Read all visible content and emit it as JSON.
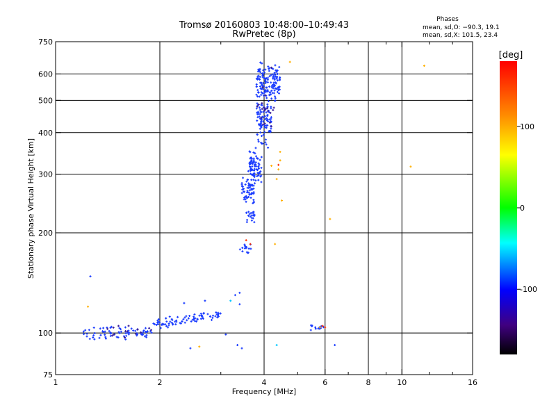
{
  "chart_data": {
    "type": "scatter",
    "title_line1": "Tromsø 20160803 10:48:00–10:49:43",
    "title_line2": "RwPretec (8p)",
    "xlabel": "Frequency [MHz]",
    "ylabel": "Stationary phase Virtual Height [km]",
    "x_scale": "log",
    "y_scale": "log",
    "xlim": [
      1,
      16
    ],
    "ylim": [
      75,
      750
    ],
    "x_ticks": [
      1,
      2,
      4,
      6,
      8,
      10,
      16
    ],
    "x_gridlines": [
      2,
      4,
      6,
      8,
      10
    ],
    "y_ticks": [
      75,
      100,
      200,
      300,
      400,
      500,
      600,
      750
    ],
    "y_gridlines": [
      100,
      200,
      300,
      400,
      500,
      600
    ],
    "grid": true,
    "legend": {
      "title": "Phases",
      "line1": "mean, sd,O: −90.3, 19.1",
      "line2": "mean, sd,X: 101.5, 23.4",
      "placement": "top-right"
    },
    "colorbar": {
      "label": "[deg]",
      "range": [
        -180,
        180
      ],
      "ticks": [
        100,
        0,
        -100
      ],
      "colors": [
        "#ff0000",
        "#ff8800",
        "#ffff00",
        "#00ff00",
        "#00ffff",
        "#0000ff",
        "#400080",
        "#000000"
      ]
    },
    "point_colors": {
      "o_mode": "#1a3cff",
      "dark": "#3a1e99",
      "x_mode": "#ffb000",
      "red": "#ff3300",
      "cyan": "#00c8ff"
    },
    "clusters": [
      {
        "mode": "o_mode",
        "x_range": [
          1.2,
          1.9
        ],
        "y_center": 100,
        "y_spread": 4,
        "n": 70
      },
      {
        "mode": "o_mode",
        "x_range": [
          1.9,
          3.0
        ],
        "y_center": 106,
        "y_spread": 3,
        "n": 80,
        "y_slope": 8
      },
      {
        "mode": "o_mode",
        "x_range": [
          3.45,
          3.75
        ],
        "y_center": 265,
        "y_spread": 20,
        "n": 60
      },
      {
        "mode": "o_mode",
        "x_range": [
          3.6,
          3.95
        ],
        "y_center": 320,
        "y_spread": 30,
        "n": 80
      },
      {
        "mode": "o_mode",
        "x_range": [
          3.8,
          4.2
        ],
        "y_center": 430,
        "y_spread": 60,
        "n": 90
      },
      {
        "mode": "o_mode",
        "x_range": [
          3.8,
          4.45
        ],
        "y_center": 560,
        "y_spread": 60,
        "n": 150
      },
      {
        "mode": "o_mode",
        "x_range": [
          3.55,
          3.75
        ],
        "y_center": 225,
        "y_spread": 10,
        "n": 20
      },
      {
        "mode": "o_mode",
        "x_range": [
          3.4,
          3.7
        ],
        "y_center": 180,
        "y_spread": 6,
        "n": 15
      },
      {
        "mode": "o_mode",
        "x_range": [
          5.4,
          6.0
        ],
        "y_center": 104,
        "y_spread": 1.5,
        "n": 14
      },
      {
        "mode": "dark",
        "x_range": [
          1.4,
          1.9
        ],
        "y_center": 102,
        "y_spread": 4,
        "n": 15
      },
      {
        "mode": "dark",
        "x_range": [
          3.8,
          4.3
        ],
        "y_center": 500,
        "y_spread": 80,
        "n": 20
      }
    ],
    "points": [
      {
        "x": 1.26,
        "y": 148,
        "mode": "o_mode"
      },
      {
        "x": 1.24,
        "y": 120,
        "mode": "x_mode"
      },
      {
        "x": 2.45,
        "y": 90,
        "mode": "o_mode"
      },
      {
        "x": 2.6,
        "y": 91,
        "mode": "x_mode"
      },
      {
        "x": 3.1,
        "y": 99,
        "mode": "o_mode"
      },
      {
        "x": 3.35,
        "y": 92,
        "mode": "o_mode"
      },
      {
        "x": 3.45,
        "y": 90,
        "mode": "o_mode"
      },
      {
        "x": 3.3,
        "y": 130,
        "mode": "o_mode"
      },
      {
        "x": 3.4,
        "y": 122,
        "mode": "o_mode"
      },
      {
        "x": 3.4,
        "y": 132,
        "mode": "o_mode"
      },
      {
        "x": 3.2,
        "y": 125,
        "mode": "cyan"
      },
      {
        "x": 2.35,
        "y": 123,
        "mode": "o_mode"
      },
      {
        "x": 2.7,
        "y": 125,
        "mode": "o_mode"
      },
      {
        "x": 4.35,
        "y": 92,
        "mode": "cyan"
      },
      {
        "x": 6.4,
        "y": 92,
        "mode": "o_mode"
      },
      {
        "x": 5.9,
        "y": 105,
        "mode": "red"
      },
      {
        "x": 6.0,
        "y": 104,
        "mode": "red"
      },
      {
        "x": 5.8,
        "y": 104,
        "mode": "x_mode"
      },
      {
        "x": 4.3,
        "y": 185,
        "mode": "x_mode"
      },
      {
        "x": 4.5,
        "y": 250,
        "mode": "x_mode"
      },
      {
        "x": 4.35,
        "y": 290,
        "mode": "x_mode"
      },
      {
        "x": 4.4,
        "y": 310,
        "mode": "x_mode"
      },
      {
        "x": 4.45,
        "y": 330,
        "mode": "x_mode"
      },
      {
        "x": 4.45,
        "y": 350,
        "mode": "x_mode"
      },
      {
        "x": 4.4,
        "y": 320,
        "mode": "red"
      },
      {
        "x": 4.2,
        "y": 318,
        "mode": "x_mode"
      },
      {
        "x": 4.75,
        "y": 652,
        "mode": "x_mode"
      },
      {
        "x": 6.2,
        "y": 220,
        "mode": "x_mode"
      },
      {
        "x": 10.6,
        "y": 316,
        "mode": "x_mode"
      },
      {
        "x": 11.6,
        "y": 635,
        "mode": "x_mode"
      },
      {
        "x": 3.65,
        "y": 185,
        "mode": "red"
      },
      {
        "x": 3.55,
        "y": 190,
        "mode": "red"
      }
    ]
  }
}
